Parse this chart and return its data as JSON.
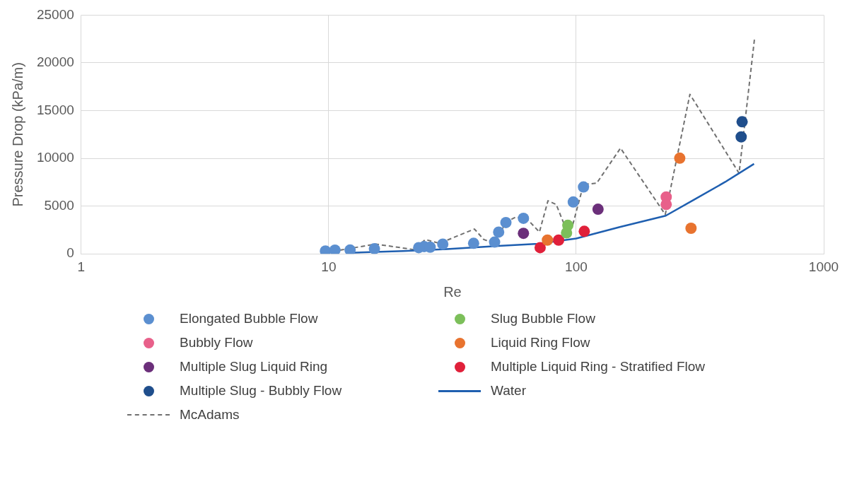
{
  "chart_data": {
    "type": "scatter",
    "xlabel": "Re",
    "ylabel": "Pressure Drop (kPa/m)",
    "log": "x",
    "xlim": [
      1,
      1000
    ],
    "xticks": [
      1,
      10,
      100,
      1000
    ],
    "ylim": [
      0,
      25000
    ],
    "yticks": [
      0,
      5000,
      10000,
      15000,
      20000,
      25000
    ],
    "grid": true,
    "legend": "bottom",
    "marker": "circle",
    "series": [
      {
        "name": "Elongated Bubble Flow",
        "color": "#5b8fd0",
        "x": [
          9.7,
          10.6,
          12.2,
          15.3,
          23.1,
          24.3,
          25.7,
          28.9,
          38.5,
          46.8,
          48.6,
          52,
          61.2,
          97.3,
          107
        ],
        "values": [
          300,
          390,
          400,
          530,
          650,
          760,
          700,
          1020,
          1100,
          1230,
          2280,
          3280,
          3720,
          5430,
          7000
        ]
      },
      {
        "name": "Slug Bubble Flow",
        "color": "#7cbf5a",
        "x": [
          92.5,
          91.4
        ],
        "values": [
          2990,
          2200
        ]
      },
      {
        "name": "Bubbly Flow",
        "color": "#e8608a",
        "x": [
          231,
          231
        ],
        "values": [
          5960,
          5170
        ]
      },
      {
        "name": "Liquid Ring Flow",
        "color": "#e8732f",
        "x": [
          76.5,
          262,
          291
        ],
        "values": [
          1440,
          10020,
          2680
        ]
      },
      {
        "name": "Multiple Slug Liquid Ring",
        "color": "#6b2f7a",
        "x": [
          61.2,
          122.5
        ],
        "values": [
          2150,
          4670
        ]
      },
      {
        "name": "Multiple Liquid Ring - Stratified Flow",
        "color": "#e0203a",
        "x": [
          71.5,
          84.9,
          107.8
        ],
        "values": [
          650,
          1440,
          2360
        ]
      },
      {
        "name": "Multiple Slug - Bubbly Flow",
        "color": "#1f4e8c",
        "x": [
          468,
          464
        ],
        "values": [
          13830,
          12250
        ]
      },
      {
        "name": "Water",
        "type": "line",
        "marker": "none",
        "line_style": "solid",
        "color": "#1f5fb0",
        "x": [
          12,
          20,
          30,
          50,
          70,
          100,
          150,
          230,
          300,
          400,
          523
        ],
        "values": [
          100,
          300,
          500,
          840,
          1050,
          1600,
          2810,
          3990,
          5690,
          7530,
          9420
        ]
      },
      {
        "name": "McAdams",
        "type": "line",
        "marker": "none",
        "line_style": "dashed",
        "color": "#707070",
        "x": [
          11.1,
          15.5,
          22,
          24.6,
          28,
          38.8,
          42.3,
          46.7,
          52.1,
          57,
          63.6,
          71,
          76.9,
          83,
          89.5,
          96.9,
          107,
          121,
          151,
          229,
          288,
          455,
          525
        ],
        "values": [
          390,
          1020,
          450,
          1500,
          1100,
          2600,
          1500,
          1100,
          3330,
          3860,
          3600,
          2280,
          5560,
          5170,
          3070,
          3070,
          7260,
          7400,
          11070,
          4120,
          16710,
          8440,
          22480
        ]
      }
    ]
  }
}
